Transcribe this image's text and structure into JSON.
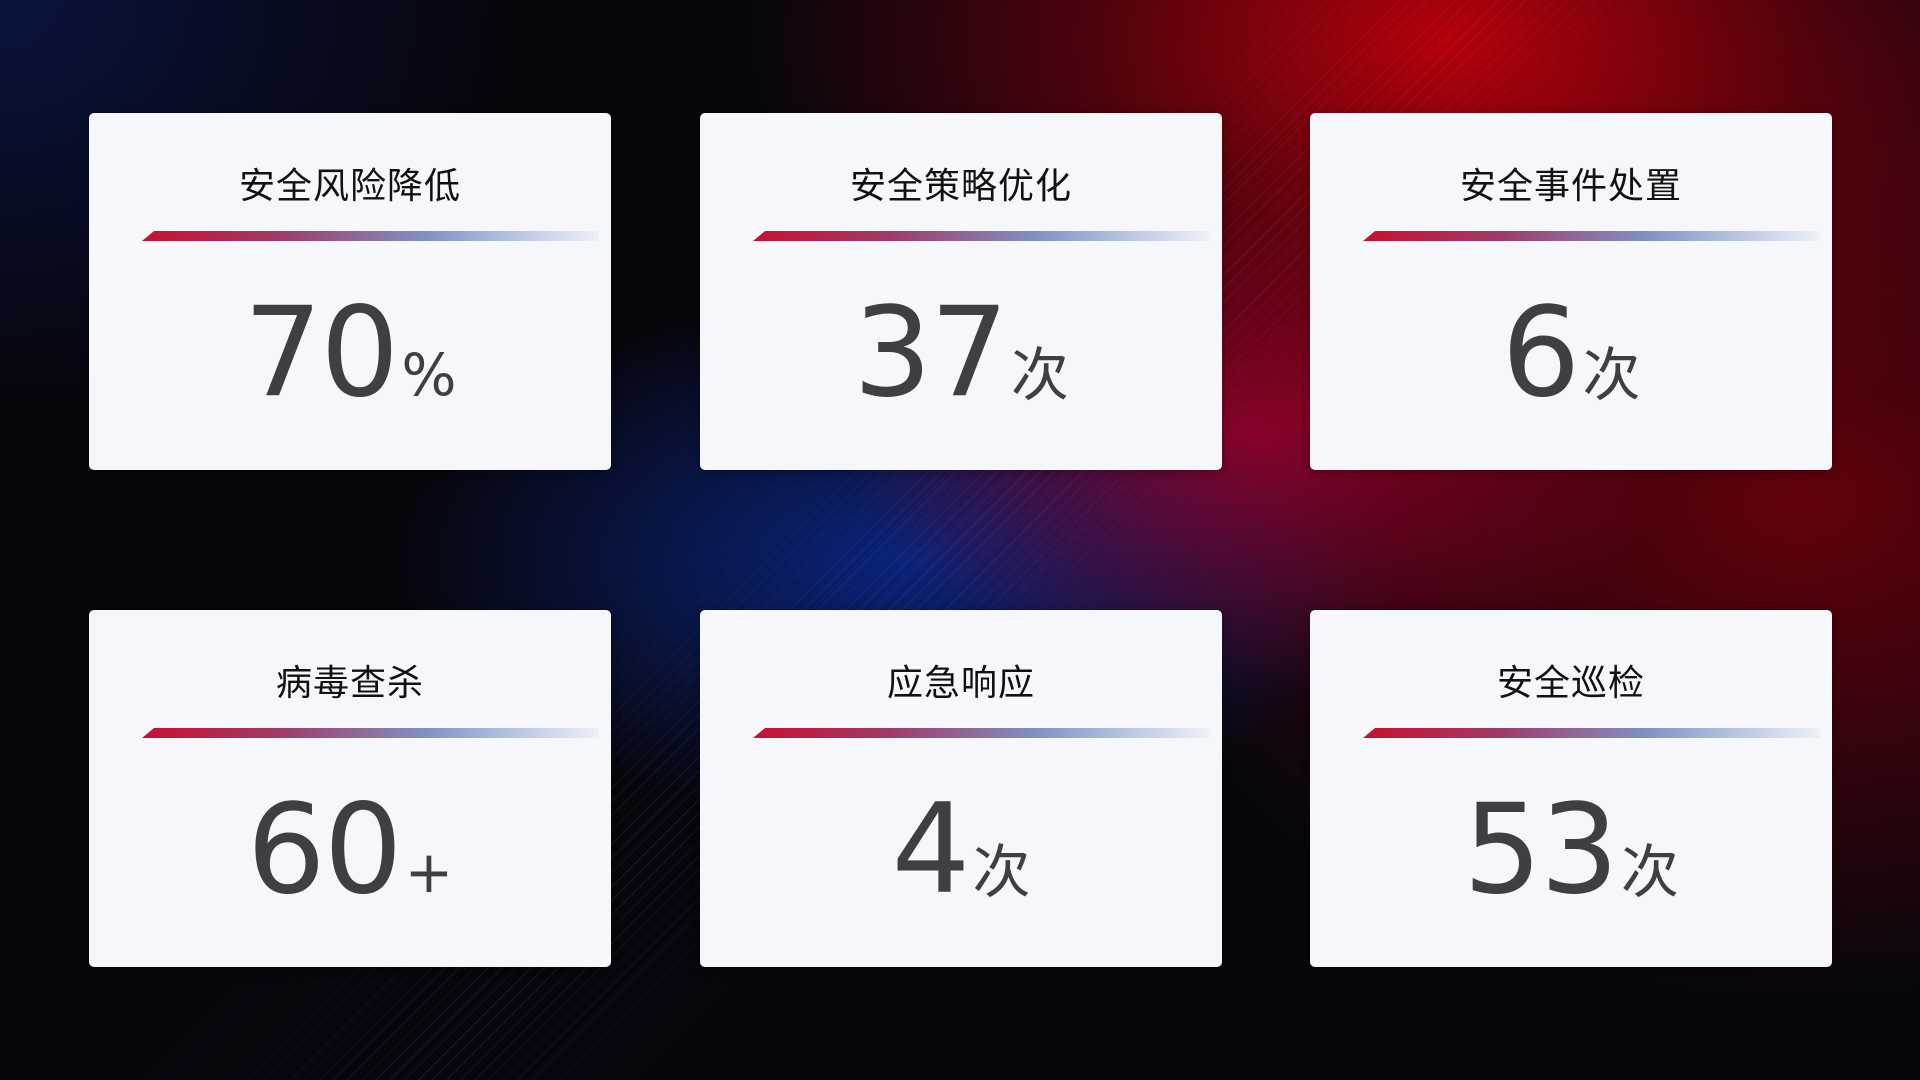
{
  "cards": [
    {
      "title": "安全风险降低",
      "value": "70",
      "unit": "%"
    },
    {
      "title": "安全策略优化",
      "value": "37",
      "unit": "次"
    },
    {
      "title": "安全事件处置",
      "value": "6",
      "unit": "次"
    },
    {
      "title": "病毒查杀",
      "value": "60",
      "unit": "+"
    },
    {
      "title": "应急响应",
      "value": "4",
      "unit": "次"
    },
    {
      "title": "安全巡检",
      "value": "53",
      "unit": "次"
    }
  ],
  "colors": {
    "accent_red": "#c8102e",
    "accent_blue": "#8090c4",
    "card_bg": "#f6f7fb",
    "value_text": "#3f3f42"
  }
}
